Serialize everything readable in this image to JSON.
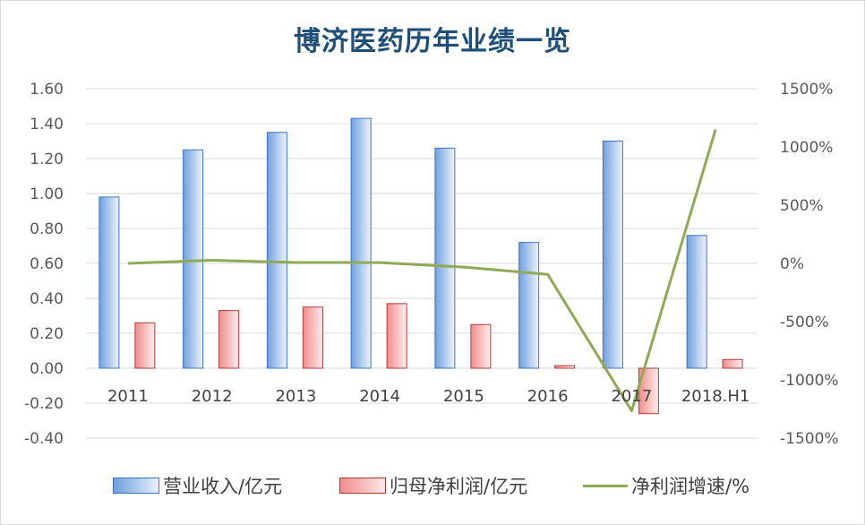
{
  "chart_data": {
    "type": "bar",
    "title": "博济医药历年业绩一览",
    "categories": [
      "2011",
      "2012",
      "2013",
      "2014",
      "2015",
      "2016",
      "2017",
      "2018.H1"
    ],
    "series": [
      {
        "name": "营业收入/亿元",
        "type": "bar",
        "axis": "left",
        "values": [
          0.98,
          1.25,
          1.35,
          1.43,
          1.26,
          0.72,
          1.3,
          0.76
        ]
      },
      {
        "name": "归母净利润/亿元",
        "type": "bar",
        "axis": "left",
        "values": [
          0.26,
          0.33,
          0.35,
          0.37,
          0.25,
          0.015,
          -0.26,
          0.05
        ]
      },
      {
        "name": "净利润增速/%",
        "type": "line",
        "axis": "right",
        "values": [
          0,
          27,
          8,
          7,
          -32,
          -94,
          -1266,
          1150
        ]
      }
    ],
    "yleft": {
      "min": -0.4,
      "max": 1.6,
      "step": 0.2,
      "ticks": [
        "1.60",
        "1.40",
        "1.20",
        "1.00",
        "0.80",
        "0.60",
        "0.40",
        "0.20",
        "0.00",
        "-0.20",
        "-0.40"
      ]
    },
    "yright": {
      "min": -1500,
      "max": 1500,
      "step": 500,
      "ticks": [
        "1500%",
        "1000%",
        "500%",
        "0%",
        "-500%",
        "-1000%",
        "-1500%"
      ]
    },
    "grid": true,
    "legend_position": "bottom",
    "colors": {
      "revenue": "#4f86d6",
      "profit": "#c94b4b",
      "growth": "#8fa955",
      "title": "#1f4e79"
    }
  },
  "legend": [
    {
      "label": "营业收入/亿元"
    },
    {
      "label": "归母净利润/亿元"
    },
    {
      "label": "净利润增速/%"
    }
  ]
}
